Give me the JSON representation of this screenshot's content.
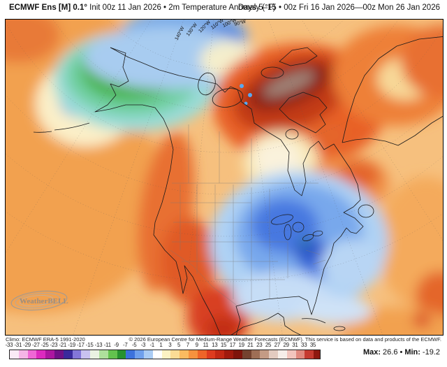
{
  "header": {
    "title_bold": "ECMWF Ens [M] 0.1°",
    "title_rest": " Init 00z 11 Jan 2026 • 2m Temperature Anomaly (°F)",
    "right": "Days 5–15 • 00z Fri 16 Jan 2026—00z Mon 26 Jan 2026"
  },
  "map": {
    "lon_labels": [
      "140°W",
      "130°W",
      "120°W",
      "110°W",
      "100°W",
      "90°W"
    ],
    "logo_text": "WeatherBELL"
  },
  "footer": {
    "climo": "Climo: ECMWF ERA-5 1991-2020",
    "attribution": "© 2026 European Centre for Medium-Range Weather Forecasts (ECMWF). This service is based on data and products of the ECMWF.",
    "max_label": "Max:",
    "max_value": "26.6",
    "bullet": "•",
    "min_label": "Min:",
    "min_value": "-19.2"
  },
  "colorbar": {
    "units": "°F anomaly",
    "tick_labels": [
      -33,
      -31,
      -29,
      -27,
      -25,
      -23,
      -21,
      -19,
      -17,
      -15,
      -13,
      -11,
      -9,
      -7,
      -5,
      -3,
      -1,
      1,
      3,
      5,
      7,
      9,
      11,
      13,
      15,
      17,
      19,
      21,
      23,
      25,
      27,
      29,
      31,
      33,
      35
    ],
    "segment_colors": [
      "#FAEAF6",
      "#F5B5E6",
      "#EF67D5",
      "#DD2ABF",
      "#AC17A0",
      "#6F1287",
      "#3A2A9C",
      "#8376D8",
      "#C9C2F0",
      "#EAF2E2",
      "#AEE09C",
      "#63C24E",
      "#27922F",
      "#3C72DC",
      "#6FA0EC",
      "#AACCF4",
      "#FFFFFF",
      "#FCF2C3",
      "#FBDC95",
      "#FABB60",
      "#F6923E",
      "#EE6428",
      "#DE3B1E",
      "#C22814",
      "#A01A0E",
      "#7E140C",
      "#74422F",
      "#9E6E55",
      "#C49B85",
      "#E3CBC0",
      "#F6EEE9",
      "#F2C5BD",
      "#E0897E",
      "#C53A30"
    ],
    "cap_color": "#8E1810",
    "field_max": 26.6,
    "field_min": -19.2
  }
}
